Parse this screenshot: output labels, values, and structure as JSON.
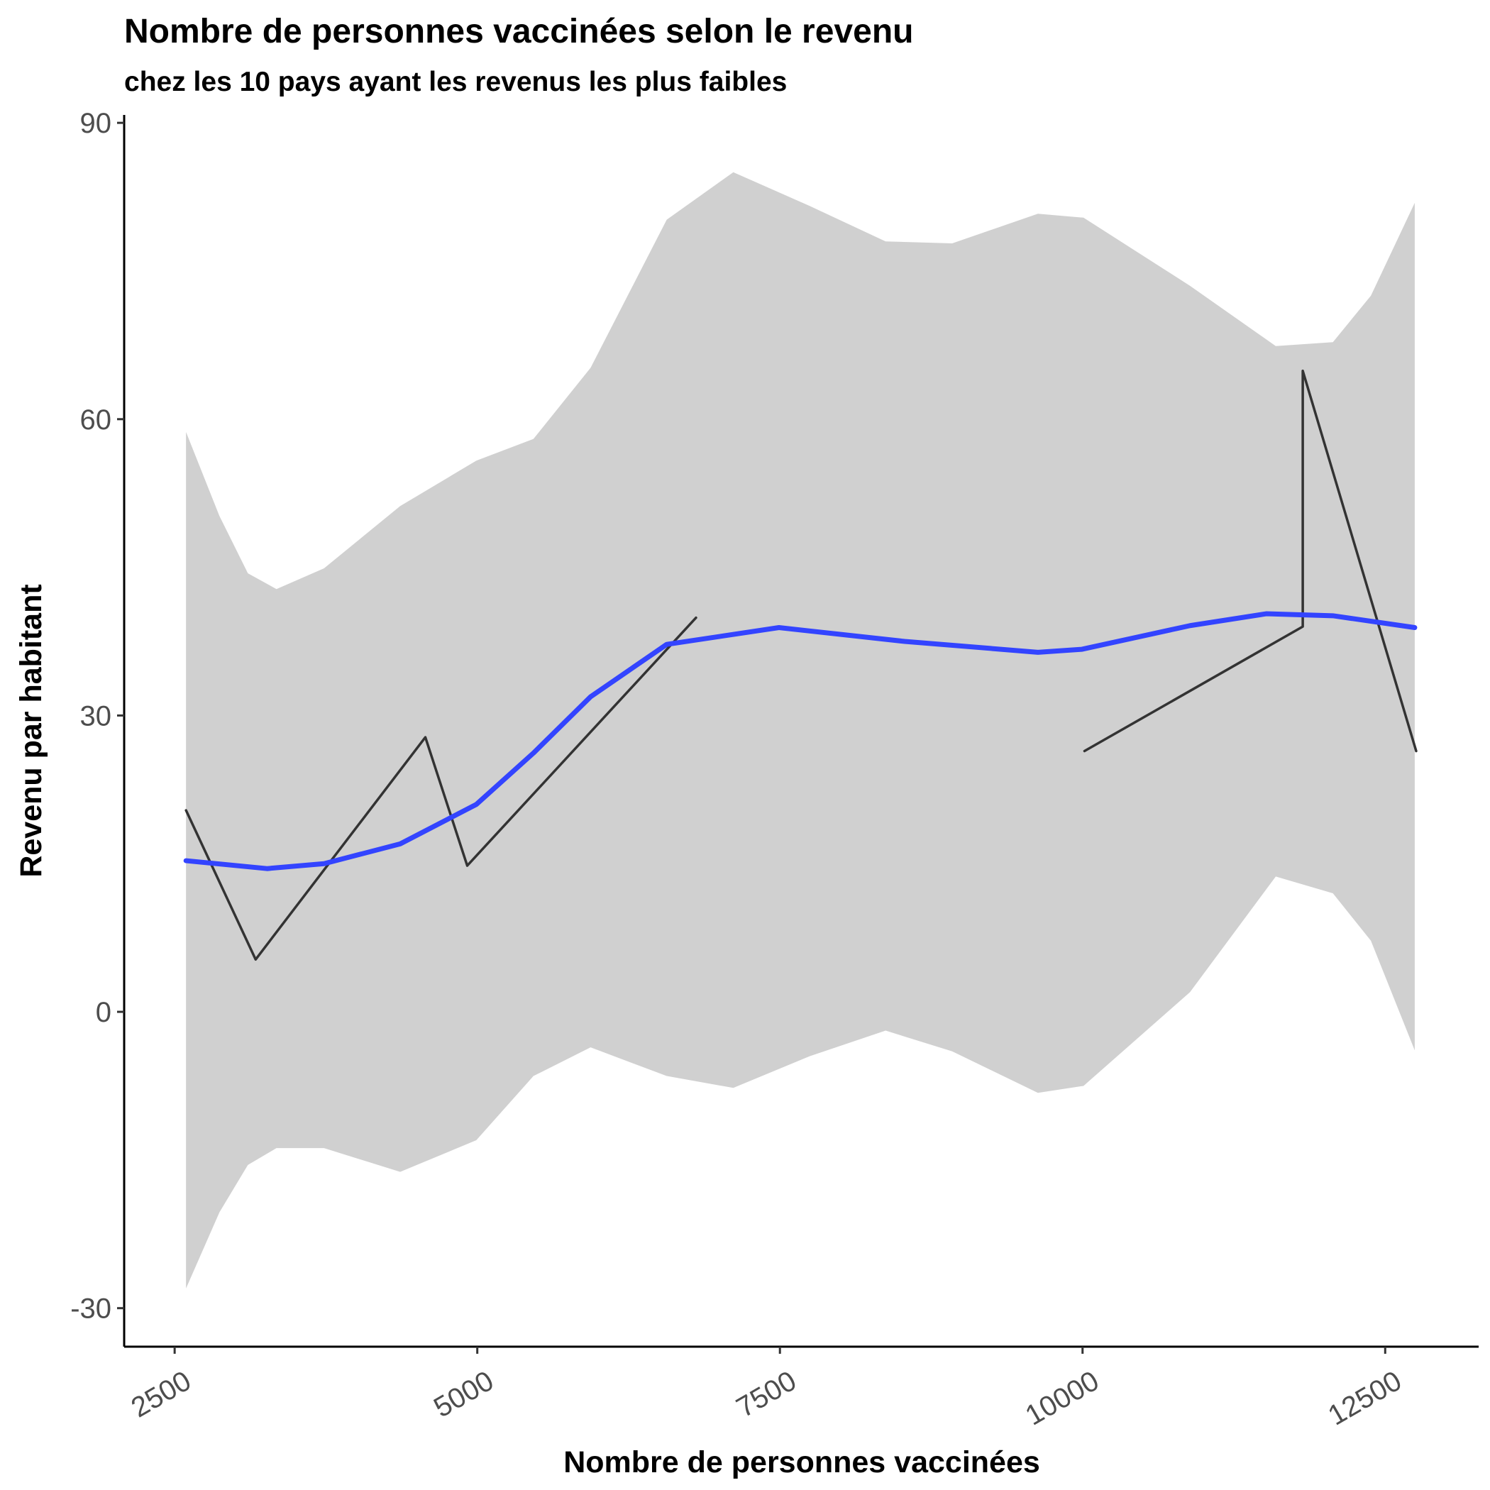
{
  "chart_data": {
    "type": "line",
    "title": "Nombre de personnes vaccinées selon le revenu",
    "subtitle": "chez les 10 pays ayant les revenus les plus faibles",
    "x_label": "Nombre de personnes vaccinées",
    "y_label": "Revenu par habitant",
    "xlim": [
      2083,
      13272
    ],
    "ylim": [
      -33.9,
      90.8
    ],
    "xticks": [
      2500,
      5000,
      7500,
      10000,
      12500
    ],
    "yticks": [
      -30,
      0,
      30,
      60,
      90
    ],
    "grid": false,
    "band": {
      "color": "#d0d0d0",
      "x": [
        2594,
        2870,
        3105,
        3341,
        3734,
        4363,
        4992,
        5464,
        5936,
        6565,
        7115,
        7744,
        8373,
        8923,
        9631,
        10008,
        10888,
        11596,
        12068,
        12382,
        12744
      ],
      "upper": [
        58.7,
        50.2,
        44.4,
        42.8,
        44.9,
        51.2,
        55.8,
        58.0,
        65.2,
        80.2,
        85.0,
        81.6,
        78.0,
        77.8,
        80.8,
        80.4,
        73.5,
        67.4,
        67.8,
        72.5,
        81.9
      ],
      "lower": [
        -28.0,
        -20.3,
        -15.5,
        -13.8,
        -13.8,
        -16.2,
        -13.0,
        -6.5,
        -3.6,
        -6.5,
        -7.7,
        -4.5,
        -1.9,
        -4.0,
        -8.2,
        -7.5,
        2.0,
        13.7,
        12.0,
        7.2,
        -3.9
      ]
    },
    "series": [
      {
        "color": "#333333",
        "linewidth": 3.5,
        "x": [
          2594,
          3169,
          4571,
          4917,
          6807
        ],
        "values": [
          20.4,
          5.3,
          27.8,
          14.8,
          39.9
        ]
      },
      {
        "color": "#333333",
        "linewidth": 3.5,
        "x": [
          10016,
          11819,
          11819,
          12756
        ],
        "values": [
          26.4,
          39.0,
          64.9,
          26.4
        ]
      },
      {
        "color": "#3344ff",
        "linewidth": 7,
        "x": [
          2594,
          3263,
          3734,
          4363,
          4992,
          5464,
          5936,
          6565,
          7492,
          8530,
          9631,
          9992,
          10888,
          11517,
          12068,
          12744
        ],
        "values": [
          15.3,
          14.5,
          15.0,
          17.0,
          21.0,
          26.2,
          31.9,
          37.2,
          38.9,
          37.5,
          36.4,
          36.7,
          39.1,
          40.3,
          40.1,
          38.9
        ]
      }
    ]
  }
}
